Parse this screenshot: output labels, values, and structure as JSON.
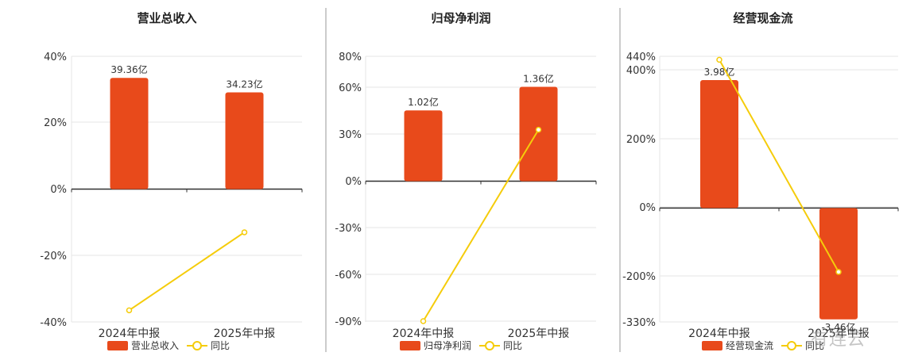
{
  "colors": {
    "bar": "#E84A1B",
    "line": "#F5CC0B",
    "grid": "#e6e6e6",
    "axis": "#333333",
    "divider": "#999999"
  },
  "watermark": "有连云",
  "chart_data": [
    {
      "type": "bar",
      "title": "营业总收入",
      "categories": [
        "2024年中报",
        "2025年中报"
      ],
      "series": [
        {
          "name": "营业总收入",
          "type": "bar",
          "values": [
            39.36,
            34.23
          ],
          "labels": [
            "39.36亿",
            "34.23亿"
          ]
        },
        {
          "name": "同比",
          "type": "line",
          "values": [
            -36.5,
            -13.0
          ]
        }
      ],
      "yticks": [
        "40%",
        "20%",
        "0%",
        "-20%",
        "-40%"
      ],
      "ylim": [
        -40,
        40
      ],
      "bar_ylim": [
        -47,
        47
      ],
      "grid": true,
      "legend": "bottom"
    },
    {
      "type": "bar",
      "title": "归母净利润",
      "categories": [
        "2024年中报",
        "2025年中报"
      ],
      "series": [
        {
          "name": "归母净利润",
          "type": "bar",
          "values": [
            1.02,
            1.36
          ],
          "labels": [
            "1.02亿",
            "1.36亿"
          ]
        },
        {
          "name": "同比",
          "type": "line",
          "values": [
            -89.5,
            33.0
          ]
        }
      ],
      "yticks": [
        "80%",
        "60%",
        "30%",
        "0%",
        "-30%",
        "-60%",
        "-90%"
      ],
      "ylim": [
        -90,
        80
      ],
      "bar_ylim": [
        -2.03,
        1.8
      ],
      "grid": true,
      "legend": "bottom"
    },
    {
      "type": "bar",
      "title": "经营现金流",
      "categories": [
        "2024年中报",
        "2025年中报"
      ],
      "series": [
        {
          "name": "经营现金流",
          "type": "bar",
          "values": [
            3.98,
            -3.46
          ],
          "labels": [
            "3.98亿",
            "-3.46亿"
          ]
        },
        {
          "name": "同比",
          "type": "line",
          "values": [
            430,
            -185
          ]
        }
      ],
      "yticks": [
        "440%",
        "400%",
        "200%",
        "0%",
        "-200%",
        "-330%"
      ],
      "ylim": [
        -330,
        440
      ],
      "bar_ylim": [
        -3.54,
        4.72
      ],
      "grid": true,
      "legend": "bottom"
    }
  ]
}
